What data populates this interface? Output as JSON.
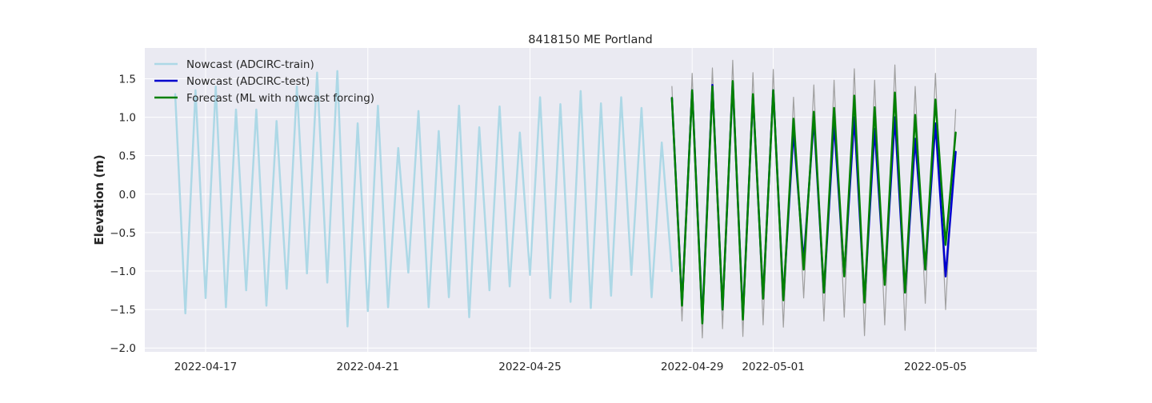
{
  "chart_data": {
    "type": "line",
    "title": "8418150 ME Portland",
    "xlabel": "",
    "ylabel": "Elevation (m)",
    "xlim": [
      "2022-04-15T12:00",
      "2022-05-07T12:00"
    ],
    "ylim": [
      -2.05,
      1.9
    ],
    "grid": true,
    "legend_position": "top-left",
    "x_ticks": [
      "2022-04-17",
      "2022-04-21",
      "2022-04-25",
      "2022-04-29",
      "2022-05-01",
      "2022-05-05"
    ],
    "y_ticks": [
      "−2.0",
      "−1.5",
      "−1.0",
      "−0.5",
      "0.0",
      "0.5",
      "1.0",
      "1.5"
    ],
    "legend": [
      {
        "label": "Nowcast (ADCIRC-train)",
        "color": "#add8e6"
      },
      {
        "label": "Nowcast (ADCIRC-test)",
        "color": "#0000cd"
      },
      {
        "label": "Forecast (ML with nowcast forcing)",
        "color": "#008000"
      }
    ],
    "series": [
      {
        "name": "Nowcast (ADCIRC-train)",
        "color": "#add8e6",
        "x": [
          "2022-04-16T06:00",
          "2022-04-16T12:00",
          "2022-04-16T18:00",
          "2022-04-17T00:00",
          "2022-04-17T06:00",
          "2022-04-17T12:00",
          "2022-04-17T18:00",
          "2022-04-18T00:00",
          "2022-04-18T06:00",
          "2022-04-18T12:00",
          "2022-04-18T18:00",
          "2022-04-19T00:00",
          "2022-04-19T06:00",
          "2022-04-19T12:00",
          "2022-04-19T18:00",
          "2022-04-20T00:00",
          "2022-04-20T06:00",
          "2022-04-20T12:00",
          "2022-04-20T18:00",
          "2022-04-21T00:00",
          "2022-04-21T06:00",
          "2022-04-21T12:00",
          "2022-04-21T18:00",
          "2022-04-22T00:00",
          "2022-04-22T06:00",
          "2022-04-22T12:00",
          "2022-04-22T18:00",
          "2022-04-23T00:00",
          "2022-04-23T06:00",
          "2022-04-23T12:00",
          "2022-04-23T18:00",
          "2022-04-24T00:00",
          "2022-04-24T06:00",
          "2022-04-24T12:00",
          "2022-04-24T18:00",
          "2022-04-25T00:00",
          "2022-04-25T06:00",
          "2022-04-25T12:00",
          "2022-04-25T18:00",
          "2022-04-26T00:00",
          "2022-04-26T06:00",
          "2022-04-26T12:00",
          "2022-04-26T18:00",
          "2022-04-27T00:00",
          "2022-04-27T06:00",
          "2022-04-27T12:00",
          "2022-04-27T18:00",
          "2022-04-28T00:00",
          "2022-04-28T06:00",
          "2022-04-28T12:00"
        ],
        "values": [
          1.3,
          -1.55,
          1.35,
          -1.35,
          1.4,
          -1.47,
          1.1,
          -1.25,
          1.1,
          -1.45,
          0.95,
          -1.23,
          1.4,
          -1.03,
          1.58,
          -1.15,
          1.6,
          -1.72,
          0.92,
          -1.52,
          1.15,
          -1.47,
          0.6,
          -1.02,
          1.08,
          -1.47,
          0.82,
          -1.34,
          1.15,
          -1.6,
          0.87,
          -1.25,
          1.14,
          -1.2,
          0.8,
          -1.05,
          1.26,
          -1.35,
          1.17,
          -1.4,
          1.34,
          -1.48,
          1.18,
          -1.32,
          1.26,
          -1.05,
          1.12,
          -1.34,
          0.67,
          -1.0
        ]
      },
      {
        "name": "Nowcast (ADCIRC-test)",
        "color": "#0000cd",
        "x": [
          "2022-04-28T12:00",
          "2022-04-28T18:00",
          "2022-04-29T00:00",
          "2022-04-29T06:00",
          "2022-04-29T12:00",
          "2022-04-29T18:00",
          "2022-04-30T00:00",
          "2022-04-30T06:00",
          "2022-04-30T12:00",
          "2022-04-30T18:00",
          "2022-05-01T00:00",
          "2022-05-01T06:00",
          "2022-05-01T12:00",
          "2022-05-01T18:00",
          "2022-05-02T00:00",
          "2022-05-02T06:00",
          "2022-05-02T12:00",
          "2022-05-02T18:00",
          "2022-05-03T00:00",
          "2022-05-03T06:00",
          "2022-05-03T12:00",
          "2022-05-03T18:00",
          "2022-05-04T00:00",
          "2022-05-04T06:00",
          "2022-05-04T12:00",
          "2022-05-04T18:00",
          "2022-05-05T00:00",
          "2022-05-05T06:00",
          "2022-05-05T12:00"
        ],
        "values": [
          1.25,
          -1.43,
          1.35,
          -1.65,
          1.42,
          -1.5,
          1.45,
          -1.6,
          1.28,
          -1.35,
          1.35,
          -1.35,
          0.82,
          -0.88,
          0.98,
          -1.28,
          0.92,
          -1.05,
          1.0,
          -1.38,
          0.85,
          -1.15,
          1.0,
          -1.28,
          0.72,
          -0.98,
          0.92,
          -1.07,
          0.55
        ]
      },
      {
        "name": "Forecast (ML with nowcast forcing)",
        "color": "#008000",
        "x": [
          "2022-04-28T12:00",
          "2022-04-28T18:00",
          "2022-04-29T00:00",
          "2022-04-29T06:00",
          "2022-04-29T12:00",
          "2022-04-29T18:00",
          "2022-04-30T00:00",
          "2022-04-30T06:00",
          "2022-04-30T12:00",
          "2022-04-30T18:00",
          "2022-05-01T00:00",
          "2022-05-01T06:00",
          "2022-05-01T12:00",
          "2022-05-01T18:00",
          "2022-05-02T00:00",
          "2022-05-02T06:00",
          "2022-05-02T12:00",
          "2022-05-02T18:00",
          "2022-05-03T00:00",
          "2022-05-03T06:00",
          "2022-05-03T12:00",
          "2022-05-03T18:00",
          "2022-05-04T00:00",
          "2022-05-04T06:00",
          "2022-05-04T12:00",
          "2022-05-04T18:00",
          "2022-05-05T00:00",
          "2022-05-05T06:00",
          "2022-05-05T12:00"
        ],
        "values": [
          1.25,
          -1.45,
          1.35,
          -1.68,
          1.4,
          -1.5,
          1.47,
          -1.63,
          1.3,
          -1.36,
          1.35,
          -1.38,
          0.98,
          -0.98,
          1.07,
          -1.28,
          1.12,
          -1.07,
          1.28,
          -1.41,
          1.13,
          -1.18,
          1.32,
          -1.28,
          1.03,
          -0.98,
          1.23,
          -0.66,
          0.8
        ]
      },
      {
        "name": "",
        "color": "#a0a0a0",
        "x": [
          "2022-04-28T12:00",
          "2022-04-28T18:00",
          "2022-04-29T00:00",
          "2022-04-29T06:00",
          "2022-04-29T12:00",
          "2022-04-29T18:00",
          "2022-04-30T00:00",
          "2022-04-30T06:00",
          "2022-04-30T12:00",
          "2022-04-30T18:00",
          "2022-05-01T00:00",
          "2022-05-01T06:00",
          "2022-05-01T12:00",
          "2022-05-01T18:00",
          "2022-05-02T00:00",
          "2022-05-02T06:00",
          "2022-05-02T12:00",
          "2022-05-02T18:00",
          "2022-05-03T00:00",
          "2022-05-03T06:00",
          "2022-05-03T12:00",
          "2022-05-03T18:00",
          "2022-05-04T00:00",
          "2022-05-04T06:00",
          "2022-05-04T12:00",
          "2022-05-04T18:00",
          "2022-05-05T00:00",
          "2022-05-05T06:00",
          "2022-05-05T12:00"
        ],
        "values": [
          1.4,
          -1.65,
          1.57,
          -1.87,
          1.64,
          -1.75,
          1.74,
          -1.85,
          1.58,
          -1.7,
          1.62,
          -1.73,
          1.26,
          -1.35,
          1.42,
          -1.65,
          1.48,
          -1.6,
          1.63,
          -1.84,
          1.48,
          -1.7,
          1.68,
          -1.77,
          1.4,
          -1.42,
          1.57,
          -1.5,
          1.1
        ]
      }
    ]
  }
}
